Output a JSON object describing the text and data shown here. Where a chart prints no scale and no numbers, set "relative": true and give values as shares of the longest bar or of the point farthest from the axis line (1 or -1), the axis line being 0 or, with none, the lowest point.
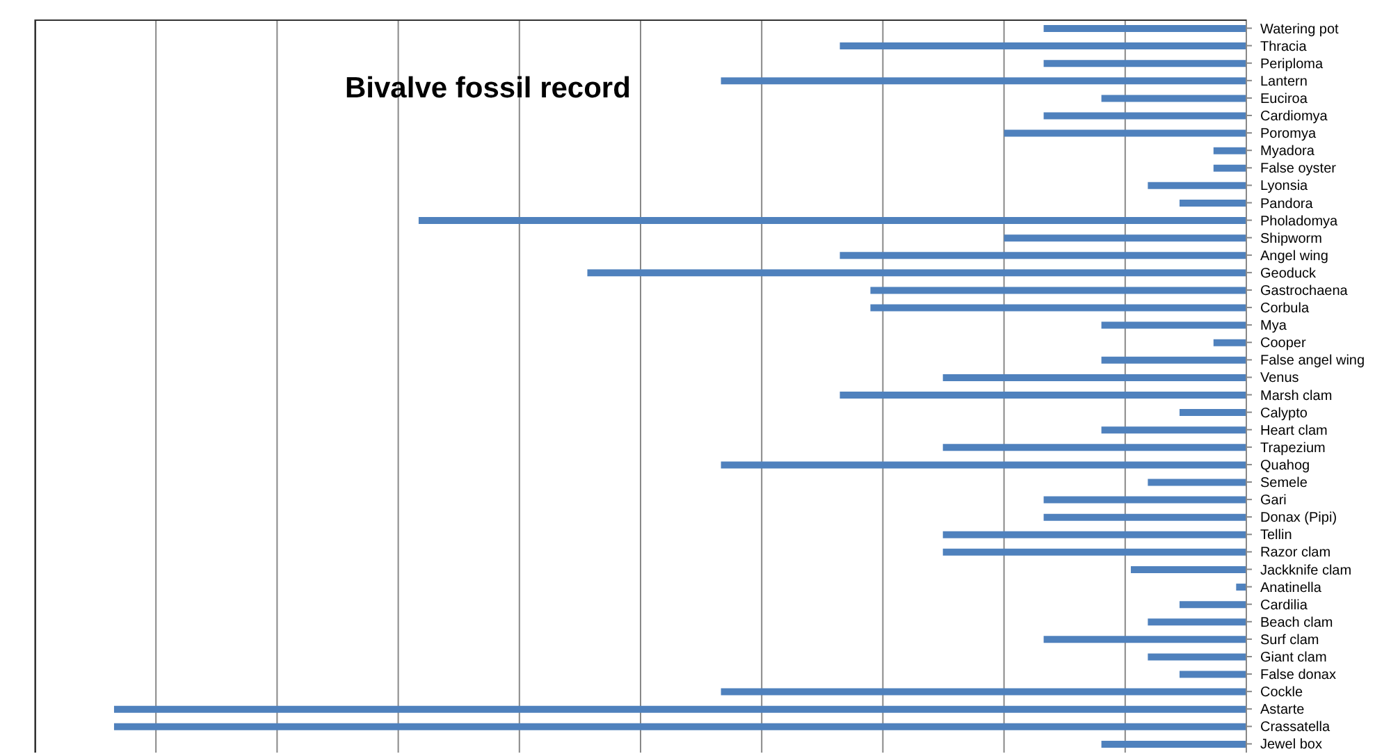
{
  "chart_data": {
    "type": "bar",
    "orientation": "horizontal",
    "relative": true,
    "title": "Bivalve fossil record",
    "grid": "x",
    "color": "#4f81bd",
    "categories": [
      "Watering pot",
      "Thracia",
      "Periploma",
      "Lantern",
      "Euciroa",
      "Cardiomya",
      "Poromya",
      "Myadora",
      "False oyster",
      "Lyonsia",
      "Pandora",
      "Pholadomya",
      "Shipworm",
      "Angel wing",
      "Geoduck",
      "Gastrochaena",
      "Corbula",
      "Mya",
      "Cooper",
      "False angel wing",
      "Venus",
      "Marsh clam",
      "Calypto",
      "Heart clam",
      "Trapezium",
      "Quahog",
      "Semele",
      "Gari",
      "Donax (Pipi)",
      "Tellin",
      "Razor clam",
      "Jackknife clam",
      "Anatinella",
      "Cardilia",
      "Beach clam",
      "Surf clam",
      "Giant clam",
      "False donax",
      "Cockle",
      "Astarte",
      "Crassatella",
      "Jewel box"
    ],
    "values": [
      0.179,
      0.359,
      0.179,
      0.464,
      0.128,
      0.179,
      0.214,
      0.029,
      0.029,
      0.087,
      0.059,
      0.731,
      0.214,
      0.359,
      0.582,
      0.332,
      0.332,
      0.128,
      0.029,
      0.128,
      0.268,
      0.359,
      0.059,
      0.128,
      0.268,
      0.464,
      0.087,
      0.179,
      0.179,
      0.268,
      0.268,
      0.102,
      0.009,
      0.059,
      0.087,
      0.179,
      0.087,
      0.059,
      0.464,
      1,
      1,
      0.128
    ]
  }
}
